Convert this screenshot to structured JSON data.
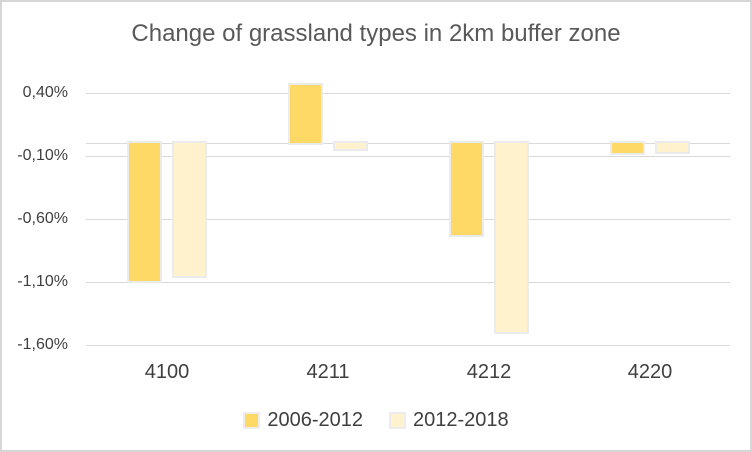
{
  "window": {
    "background_color": "#FFFFFF",
    "border_color": "#D6D6D6"
  },
  "chart_data": {
    "type": "bar",
    "title": "Change of grassland types in 2km buffer zone",
    "title_color": "#595959",
    "categories": [
      "4100",
      "4211",
      "4212",
      "4220"
    ],
    "series": [
      {
        "name": "2006-2012",
        "color": "#FFD966",
        "values": [
          -1.1,
          0.46,
          -0.73,
          -0.08
        ]
      },
      {
        "name": "2012-2018",
        "color": "#FFF2CC",
        "values": [
          -1.06,
          -0.05,
          -1.5,
          -0.07
        ]
      }
    ],
    "y_ticks": [
      {
        "label": "0,40%",
        "value": 0.4
      },
      {
        "label": "-0,10%",
        "value": -0.1
      },
      {
        "label": "-0,60%",
        "value": -0.6
      },
      {
        "label": "-1,10%",
        "value": -1.1
      },
      {
        "label": "-1,60%",
        "value": -1.6
      }
    ],
    "ylim": [
      -1.6,
      0.4
    ],
    "unit": "%",
    "decimal_separator": ",",
    "baseline_value": 0,
    "grid": true,
    "legend_position": "bottom",
    "gridline_color": "#D9D9D9",
    "bar_outline_color": "#EBEBEB",
    "label_color": "#3F3F3F"
  }
}
